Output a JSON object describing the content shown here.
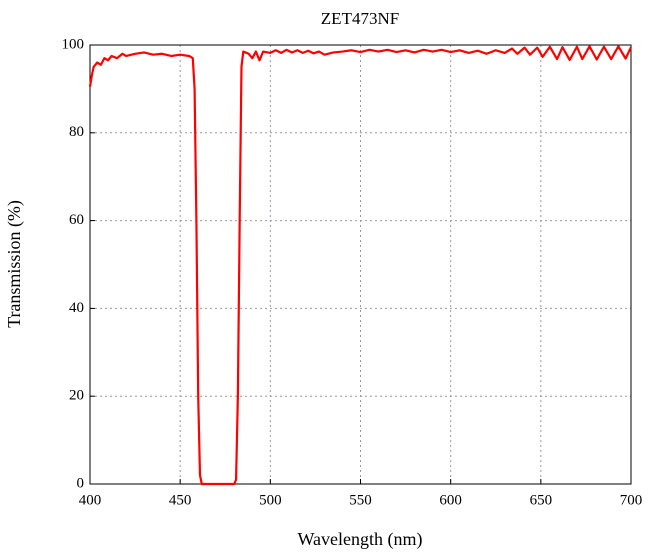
{
  "chart_data": {
    "type": "line",
    "title": "ZET473NF",
    "x_label": "Wavelength (nm)",
    "y_label": "Transmission (%)",
    "x": [
      400,
      401,
      402,
      404,
      406,
      408,
      410,
      412,
      415,
      418,
      420,
      425,
      430,
      435,
      440,
      445,
      450,
      455,
      457,
      458,
      459,
      460,
      461,
      462,
      470,
      480,
      481,
      482,
      483,
      484,
      485,
      488,
      490,
      492,
      494,
      496,
      500,
      503,
      506,
      509,
      512,
      515,
      518,
      521,
      524,
      527,
      530,
      535,
      540,
      545,
      550,
      555,
      560,
      565,
      570,
      575,
      580,
      585,
      590,
      595,
      600,
      605,
      610,
      615,
      620,
      625,
      630,
      634,
      637,
      641,
      644,
      648,
      651,
      655,
      659,
      662,
      666,
      670,
      673,
      677,
      681,
      685,
      689,
      693,
      697,
      700
    ],
    "values": [
      90.5,
      93,
      95,
      96,
      95.5,
      97,
      96.5,
      97.5,
      97,
      98,
      97.5,
      98,
      98.3,
      97.8,
      98,
      97.5,
      97.8,
      97.5,
      97,
      90,
      60,
      20,
      2,
      0,
      0,
      0,
      1,
      20,
      60,
      95,
      98.5,
      98,
      97,
      98.5,
      96.5,
      98.5,
      98.2,
      98.8,
      98.2,
      98.9,
      98.3,
      98.8,
      98.2,
      98.7,
      98.1,
      98.5,
      97.8,
      98.3,
      98.5,
      98.8,
      98.4,
      98.9,
      98.5,
      98.9,
      98.4,
      98.8,
      98.3,
      98.9,
      98.5,
      98.9,
      98.4,
      98.8,
      98.2,
      98.7,
      98,
      98.8,
      98.2,
      99.2,
      98,
      99.4,
      97.8,
      99.4,
      97.3,
      99.6,
      96.8,
      99.5,
      96.6,
      99.6,
      96.8,
      99.7,
      96.7,
      99.6,
      96.8,
      99.7,
      96.9,
      99.5
    ],
    "color": "#ff0000",
    "xlim": [
      400,
      700
    ],
    "xticks": [
      400,
      450,
      500,
      550,
      600,
      650,
      700
    ],
    "ylim": [
      0,
      100
    ],
    "yticks": [
      0,
      20,
      40,
      60,
      80,
      100
    ],
    "grid": true
  }
}
